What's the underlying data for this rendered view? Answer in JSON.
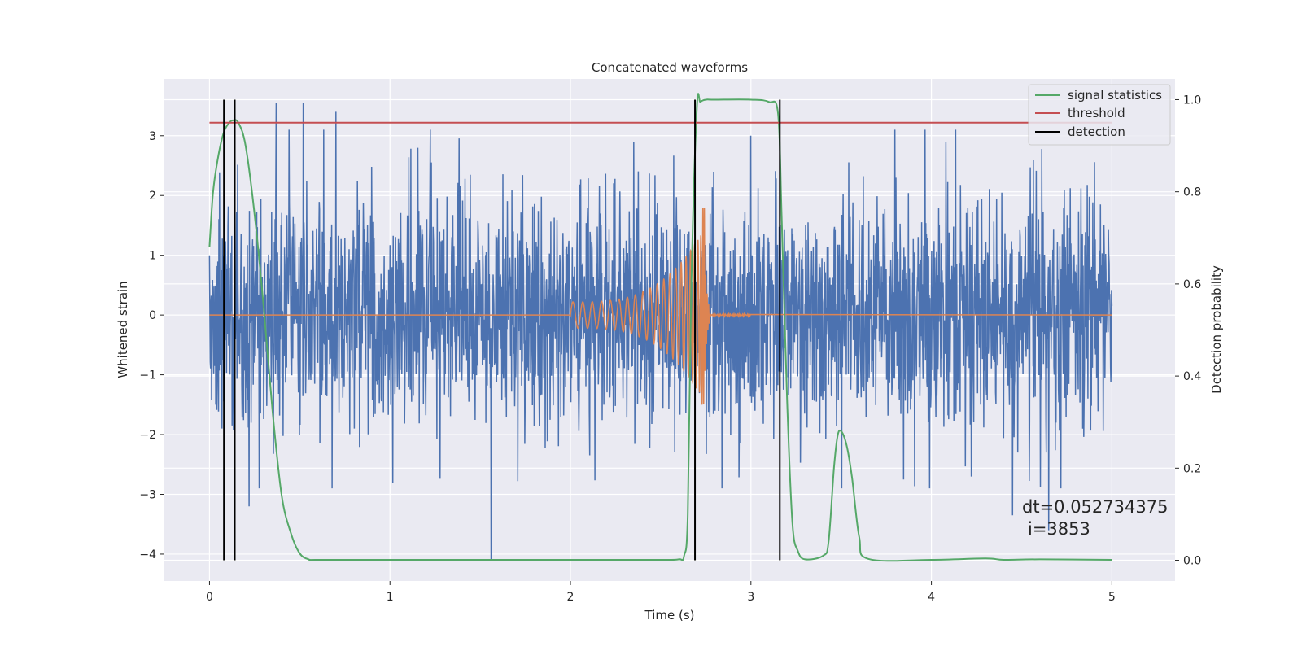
{
  "chart_data": {
    "type": "line",
    "title": "Concatenated waveforms",
    "xlabel": "Time (s)",
    "ylabel": "Whitened strain",
    "y2label": "Detection probability",
    "xlim": [
      -0.25,
      5.35
    ],
    "ylim": [
      -4.45,
      3.95
    ],
    "y2lim": [
      -0.045,
      1.045
    ],
    "xticks": [
      0,
      1,
      2,
      3,
      4,
      5
    ],
    "xtick_labels": [
      "0",
      "1",
      "2",
      "3",
      "4",
      "5"
    ],
    "yticks": [
      -4,
      -3,
      -2,
      -1,
      0,
      1,
      2,
      3
    ],
    "ytick_labels": [
      "−4",
      "−3",
      "−2",
      "−1",
      "0",
      "1",
      "2",
      "3"
    ],
    "y2ticks": [
      0.0,
      0.2,
      0.4,
      0.6,
      0.8,
      1.0
    ],
    "y2tick_labels": [
      "0.0",
      "0.2",
      "0.4",
      "0.6",
      "0.8",
      "1.0"
    ],
    "grid": true,
    "legend_position": "top-right",
    "annotation": {
      "line1": "dt=0.052734375",
      "line2": "i=3853",
      "x": 4.5,
      "y": -3.3
    },
    "series": [
      {
        "name": "",
        "axis": "left",
        "color": "#4c72b0",
        "description": "noisy whitened strain, roughly between -2.5 and 2.5",
        "x_range": [
          0,
          5
        ],
        "amplitude": 2.5,
        "spikes": [
          [
            0.37,
            3.55
          ],
          [
            0.52,
            3.55
          ],
          [
            0.7,
            3.4
          ],
          [
            1.56,
            -4.1
          ],
          [
            0.22,
            -3.2
          ],
          [
            2.35,
            2.9
          ],
          [
            3.0,
            3.0
          ],
          [
            4.08,
            2.9
          ],
          [
            4.45,
            -3.35
          ],
          [
            4.65,
            -3.6
          ],
          [
            0.68,
            -2.9
          ],
          [
            2.84,
            -2.9
          ]
        ]
      },
      {
        "name": "",
        "axis": "left",
        "color": "#dd8452",
        "description": "injected chirp signal",
        "x_range": [
          2.0,
          3.0
        ],
        "merger_time": 2.74,
        "peak_amplitude": 1.8,
        "min_amplitude": -1.5
      },
      {
        "name": "signal statistics",
        "axis": "right",
        "color": "#55a868",
        "x": [
          0.0,
          0.02,
          0.05,
          0.08,
          0.11,
          0.13,
          0.16,
          0.2,
          0.25,
          0.3,
          0.35,
          0.4,
          0.45,
          0.5,
          0.55,
          0.6,
          1.0,
          2.0,
          2.5,
          2.6,
          2.63,
          2.65,
          2.67,
          2.7,
          2.72,
          2.75,
          2.8,
          3.0,
          3.1,
          3.15,
          3.17,
          3.2,
          3.23,
          3.26,
          3.3,
          3.4,
          3.43,
          3.46,
          3.48,
          3.5,
          3.53,
          3.56,
          3.6,
          3.65,
          4.0,
          4.3,
          4.4,
          4.6,
          5.0
        ],
        "y": [
          0.68,
          0.8,
          0.88,
          0.93,
          0.95,
          0.955,
          0.95,
          0.9,
          0.75,
          0.55,
          0.32,
          0.14,
          0.06,
          0.015,
          0.002,
          0.001,
          0.001,
          0.001,
          0.001,
          0.002,
          0.01,
          0.1,
          0.6,
          0.98,
          0.995,
          1.0,
          1.0,
          1.0,
          0.995,
          0.97,
          0.75,
          0.35,
          0.08,
          0.02,
          0.002,
          0.01,
          0.04,
          0.2,
          0.27,
          0.28,
          0.25,
          0.18,
          0.05,
          0.003,
          0.001,
          0.004,
          0.001,
          0.002,
          0.001
        ]
      },
      {
        "name": "threshold",
        "axis": "right",
        "color": "#c44e52",
        "x": [
          0,
          5
        ],
        "y": [
          0.95,
          0.95
        ]
      }
    ],
    "detections": {
      "name": "detection",
      "color": "#000000",
      "x": [
        0.08,
        0.14,
        2.69,
        3.16
      ],
      "y_range": [
        0.0,
        1.0
      ]
    }
  }
}
